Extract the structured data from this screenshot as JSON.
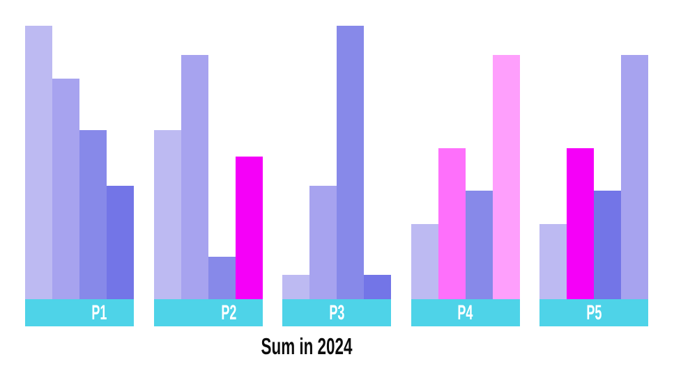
{
  "chart_data": {
    "type": "bar",
    "title": "Sum in 2024",
    "categories": [
      "P1",
      "P2",
      "P3",
      "P4",
      "P5"
    ],
    "groups": [
      {
        "label": "P1",
        "bars": [
          {
            "value": 393,
            "color": "#bdbaf2"
          },
          {
            "value": 317,
            "color": "#a7a3ef"
          },
          {
            "value": 243,
            "color": "#8789e9"
          },
          {
            "value": 163,
            "color": "#7375e7"
          }
        ]
      },
      {
        "label": "P2",
        "bars": [
          {
            "value": 243,
            "color": "#bdbaf2"
          },
          {
            "value": 351,
            "color": "#a7a3ef"
          },
          {
            "value": 61,
            "color": "#8789e9"
          },
          {
            "value": 205,
            "color": "#f500f8"
          }
        ]
      },
      {
        "label": "P3",
        "bars": [
          {
            "value": 35,
            "color": "#bdbaf2"
          },
          {
            "value": 163,
            "color": "#a7a3ef"
          },
          {
            "value": 393,
            "color": "#8789e9"
          },
          {
            "value": 35,
            "color": "#7375e7"
          }
        ]
      },
      {
        "label": "P4",
        "bars": [
          {
            "value": 108,
            "color": "#bdbaf2"
          },
          {
            "value": 217,
            "color": "#fe70fb"
          },
          {
            "value": 156,
            "color": "#8789e9"
          },
          {
            "value": 351,
            "color": "#fe9ffc"
          }
        ]
      },
      {
        "label": "P5",
        "bars": [
          {
            "value": 108,
            "color": "#bdbaf2"
          },
          {
            "value": 217,
            "color": "#f500f8"
          },
          {
            "value": 156,
            "color": "#7375e7"
          },
          {
            "value": 351,
            "color": "#a7a3ef"
          }
        ]
      }
    ],
    "ylim": [
      0,
      430
    ],
    "xlabel": "",
    "ylabel": "",
    "axes_visible": false,
    "grid": false,
    "legend": "none",
    "band_color": "#4ed3e8",
    "category_label_color": "#ffffff",
    "title_color": "#0d0d0d",
    "background_color": "#ffffff"
  }
}
